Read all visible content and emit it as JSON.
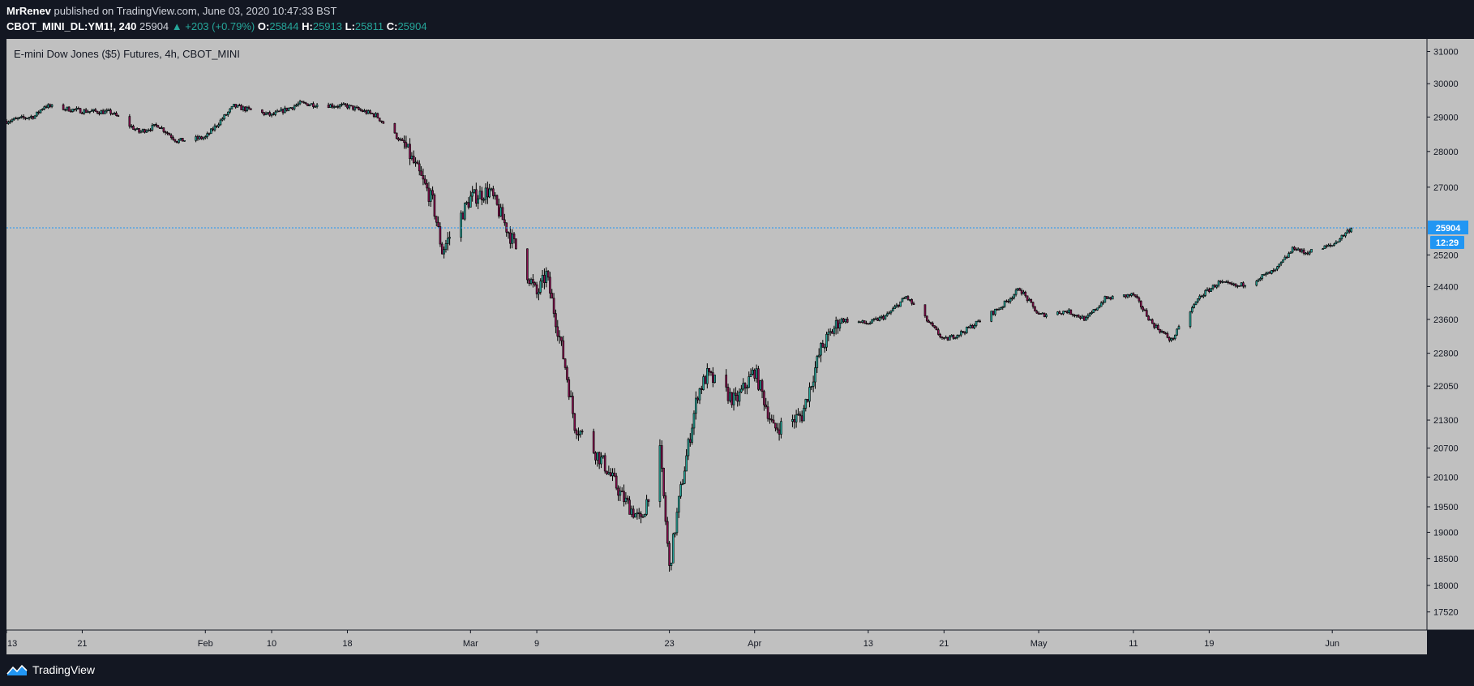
{
  "header": {
    "author": "MrRenev",
    "published_text": "published on TradingView.com, June 03, 2020 10:47:33 BST",
    "symbol": "CBOT_MINI_DL:YM1!, 240",
    "last": "25904",
    "change": "▲ +203 (+0.79%)",
    "o_label": "O:",
    "o_value": "25844",
    "h_label": "H:",
    "h_value": "25913",
    "l_label": "L:",
    "l_value": "25811",
    "c_label": "C:",
    "c_value": "25904"
  },
  "footer": {
    "brand": "TradingView",
    "logo_icon": "tradingview-logo-icon"
  },
  "colors": {
    "page_bg": "#131722",
    "plot_bg": "#c0c0c0",
    "up_candle": "#26a69a",
    "down_candle": "#880e4f",
    "wick": "#000000",
    "price_line": "#2196f3",
    "price_tag": "#2196f3"
  },
  "chart_data": {
    "type": "candlestick",
    "title": "E-mini Dow Jones ($5) Futures, 4h, CBOT_MINI",
    "timeframe": "4h",
    "x_tick_labels": [
      "13",
      "21",
      "Feb",
      "10",
      "18",
      "Mar",
      "9",
      "23",
      "Apr",
      "13",
      "21",
      "May",
      "11",
      "19",
      "Jun"
    ],
    "x_tick_dates": [
      "2020-01-13",
      "2020-01-21",
      "2020-02-03",
      "2020-02-10",
      "2020-02-18",
      "2020-03-02",
      "2020-03-09",
      "2020-03-23",
      "2020-04-01",
      "2020-04-13",
      "2020-04-21",
      "2020-05-01",
      "2020-05-11",
      "2020-05-19",
      "2020-06-01"
    ],
    "x_range": [
      "2020-01-13",
      "2020-06-11"
    ],
    "y_tick_labels": [
      "31000",
      "30000",
      "29000",
      "28000",
      "27000",
      "25200",
      "24400",
      "23600",
      "22800",
      "22050",
      "21300",
      "20700",
      "20100",
      "19500",
      "19000",
      "18500",
      "18000",
      "17520"
    ],
    "y_scale": "log",
    "ylim": [
      17200,
      31400
    ],
    "last_price": "25904",
    "last_price_value": 25904,
    "countdown": "12:29",
    "grid": false,
    "close_path": [
      [
        "2020-01-13",
        28880
      ],
      [
        "2020-01-16",
        29030
      ],
      [
        "2020-01-17",
        29330
      ],
      [
        "2020-01-21",
        29180
      ],
      [
        "2020-01-24",
        29140
      ],
      [
        "2020-01-27",
        28560
      ],
      [
        "2020-01-29",
        28760
      ],
      [
        "2020-01-31",
        28300
      ],
      [
        "2020-02-03",
        28400
      ],
      [
        "2020-02-06",
        29320
      ],
      [
        "2020-02-10",
        29050
      ],
      [
        "2020-02-13",
        29400
      ],
      [
        "2020-02-18",
        29320
      ],
      [
        "2020-02-21",
        29050
      ],
      [
        "2020-02-24",
        28200
      ],
      [
        "2020-02-27",
        26600
      ],
      [
        "2020-02-28",
        25300
      ],
      [
        "2020-03-02",
        26700
      ],
      [
        "2020-03-04",
        26900
      ],
      [
        "2020-03-06",
        25800
      ],
      [
        "2020-03-09",
        24200
      ],
      [
        "2020-03-10",
        24700
      ],
      [
        "2020-03-12",
        22500
      ],
      [
        "2020-03-13",
        21200
      ],
      [
        "2020-03-16",
        20400
      ],
      [
        "2020-03-18",
        19700
      ],
      [
        "2020-03-20",
        19200
      ],
      [
        "2020-03-22",
        20600
      ],
      [
        "2020-03-23",
        18300
      ],
      [
        "2020-03-24",
        19600
      ],
      [
        "2020-03-26",
        21900
      ],
      [
        "2020-03-27",
        22300
      ],
      [
        "2020-03-30",
        21700
      ],
      [
        "2020-04-01",
        22400
      ],
      [
        "2020-04-03",
        21100
      ],
      [
        "2020-04-06",
        21400
      ],
      [
        "2020-04-08",
        22900
      ],
      [
        "2020-04-10",
        23600
      ],
      [
        "2020-04-13",
        23500
      ],
      [
        "2020-04-15",
        23700
      ],
      [
        "2020-04-17",
        24150
      ],
      [
        "2020-04-21",
        23100
      ],
      [
        "2020-04-23",
        23300
      ],
      [
        "2020-04-27",
        23900
      ],
      [
        "2020-04-29",
        24350
      ],
      [
        "2020-05-01",
        23700
      ],
      [
        "2020-05-04",
        23800
      ],
      [
        "2020-05-06",
        23600
      ],
      [
        "2020-05-08",
        24100
      ],
      [
        "2020-05-11",
        24200
      ],
      [
        "2020-05-13",
        23500
      ],
      [
        "2020-05-15",
        23100
      ],
      [
        "2020-05-18",
        24150
      ],
      [
        "2020-05-20",
        24500
      ],
      [
        "2020-05-22",
        24400
      ],
      [
        "2020-05-26",
        24800
      ],
      [
        "2020-05-28",
        25400
      ],
      [
        "2020-05-29",
        25250
      ],
      [
        "2020-06-01",
        25450
      ],
      [
        "2020-06-03",
        25904
      ]
    ]
  }
}
